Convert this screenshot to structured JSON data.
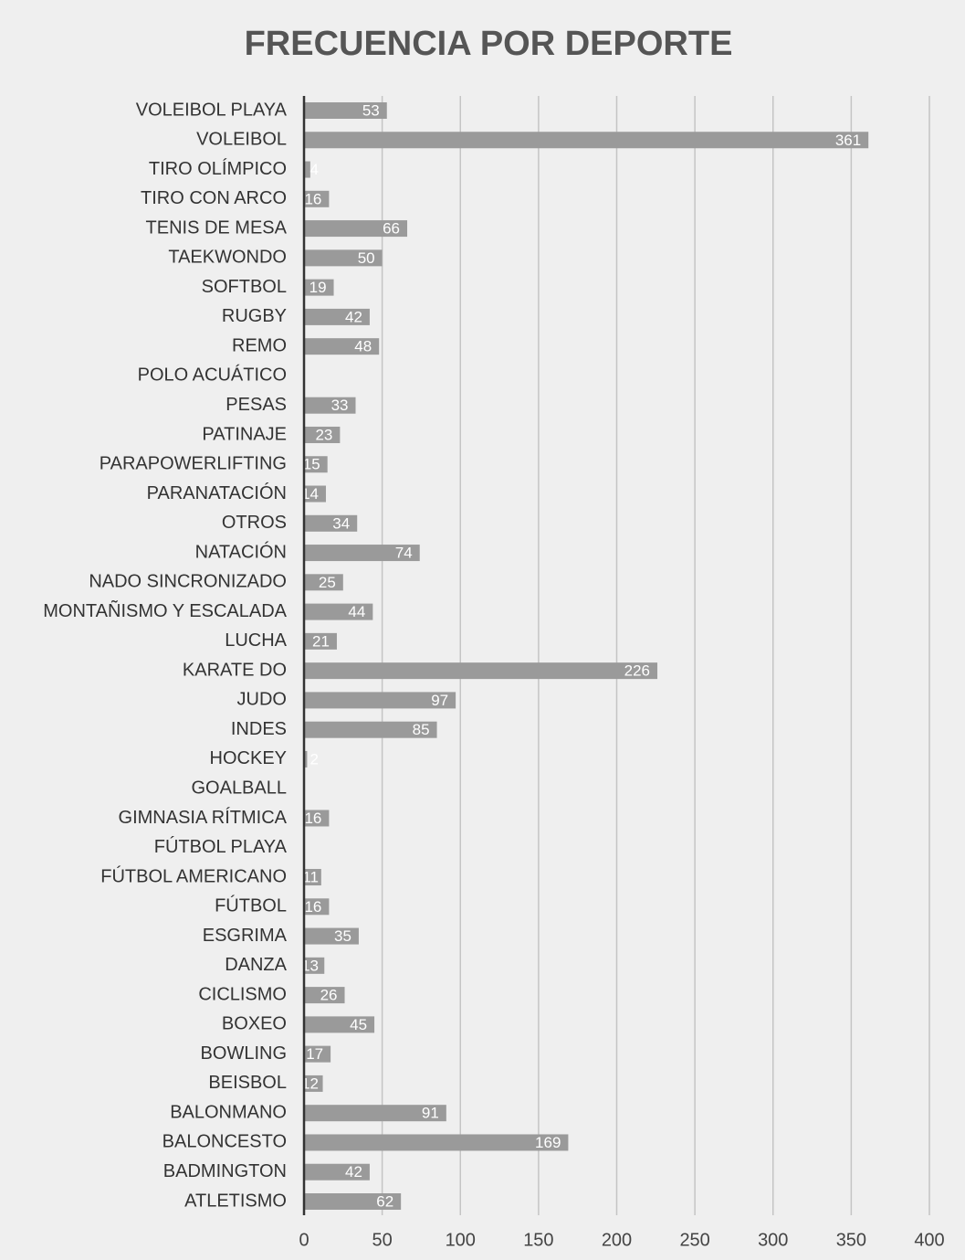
{
  "chart_data": {
    "type": "barh",
    "title": "FRECUENCIA POR DEPORTE",
    "categories": [
      "VOLEIBOL PLAYA",
      "VOLEIBOL",
      "TIRO OLÍMPICO",
      "TIRO CON ARCO",
      "TENIS DE MESA",
      "TAEKWONDO",
      "SOFTBOL",
      "RUGBY",
      "REMO",
      "POLO ACUÁTICO",
      "PESAS",
      "PATINAJE",
      "PARAPOWERLIFTING",
      "PARANATACIÓN",
      "OTROS",
      "NATACIÓN",
      "NADO SINCRONIZADO",
      "MONTAÑISMO Y ESCALADA",
      "LUCHA",
      "KARATE DO",
      "JUDO",
      "INDES",
      "HOCKEY",
      "GOALBALL",
      "GIMNASIA RÍTMICA",
      "FÚTBOL PLAYA",
      "FÚTBOL AMERICANO",
      "FÚTBOL",
      "ESGRIMA",
      "DANZA",
      "CICLISMO",
      "BOXEO",
      "BOWLING",
      "BEISBOL",
      "BALONMANO",
      "BALONCESTO",
      "BADMINGTON",
      "ATLETISMO"
    ],
    "values": [
      53,
      361,
      4,
      16,
      66,
      50,
      19,
      42,
      48,
      0,
      33,
      23,
      15,
      14,
      34,
      74,
      25,
      44,
      21,
      226,
      97,
      85,
      2,
      0,
      16,
      0,
      11,
      16,
      35,
      13,
      26,
      45,
      17,
      12,
      91,
      169,
      42,
      62
    ],
    "color": "#9a9a9a",
    "xlim": [
      0,
      400
    ],
    "xticks": [
      0,
      50,
      100,
      150,
      200,
      250,
      300,
      350,
      400
    ],
    "grid": true
  }
}
